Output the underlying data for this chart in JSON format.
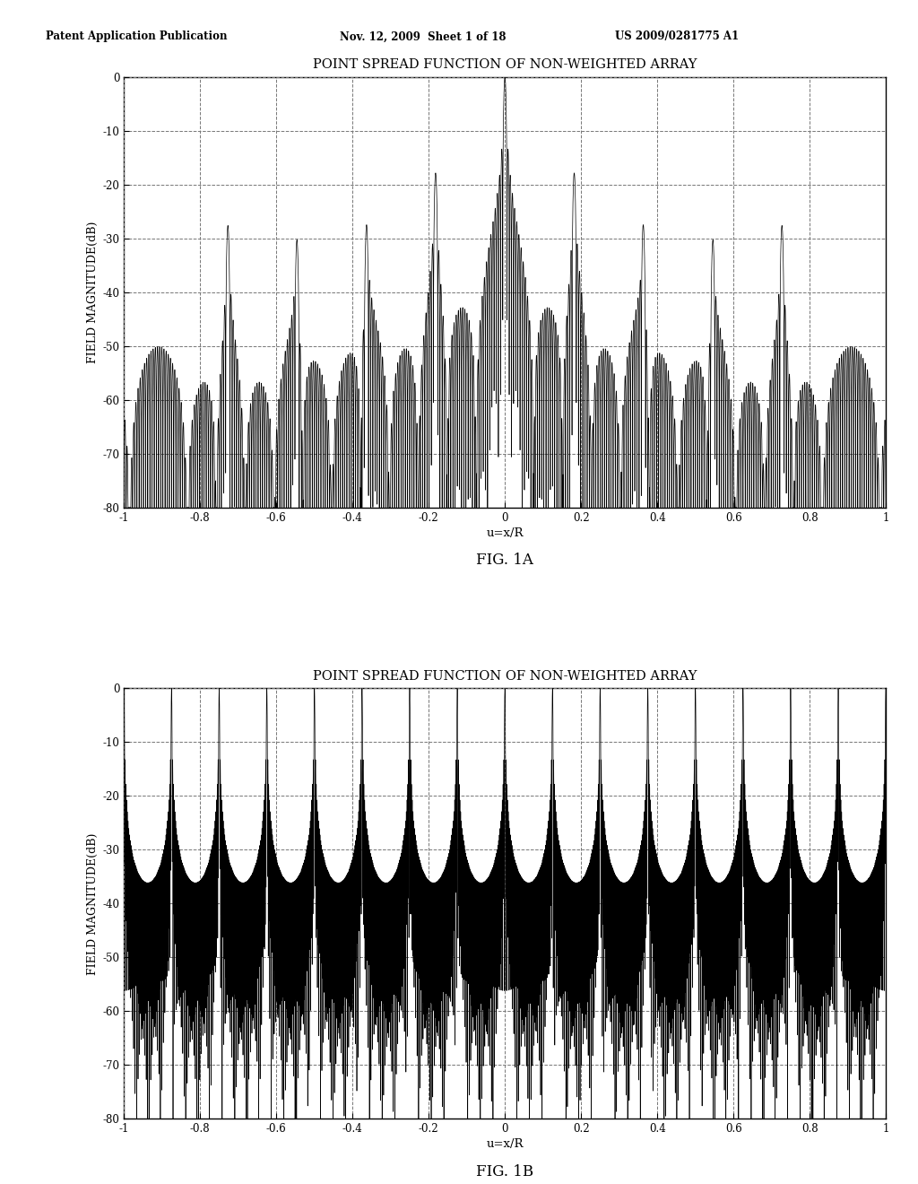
{
  "title": "POINT SPREAD FUNCTION OF NON-WEIGHTED ARRAY",
  "xlabel": "u=x/R",
  "ylabel": "FIELD MAGNITUDE(dB)",
  "fig1_caption": "FIG. 1A",
  "fig2_caption": "FIG. 1B",
  "ylim": [
    -80,
    0
  ],
  "xlim": [
    -1,
    1
  ],
  "yticks": [
    0,
    -10,
    -20,
    -30,
    -40,
    -50,
    -60,
    -70,
    -80
  ],
  "xticks": [
    -1,
    -0.8,
    -0.6,
    -0.4,
    -0.2,
    0,
    0.2,
    0.4,
    0.6,
    0.8,
    1
  ],
  "xtick_labels": [
    "-1",
    "-0.8",
    "-0.6",
    "-0.4",
    "-0.2",
    "0",
    "0.2",
    "0.4",
    "0.6",
    "0.8",
    "1"
  ],
  "header_left": "Patent Application Publication",
  "header_mid": "Nov. 12, 2009  Sheet 1 of 18",
  "header_right": "US 2009/0281775 A1",
  "background_color": "#ffffff",
  "line_color": "#000000",
  "grid_color": "#777777"
}
